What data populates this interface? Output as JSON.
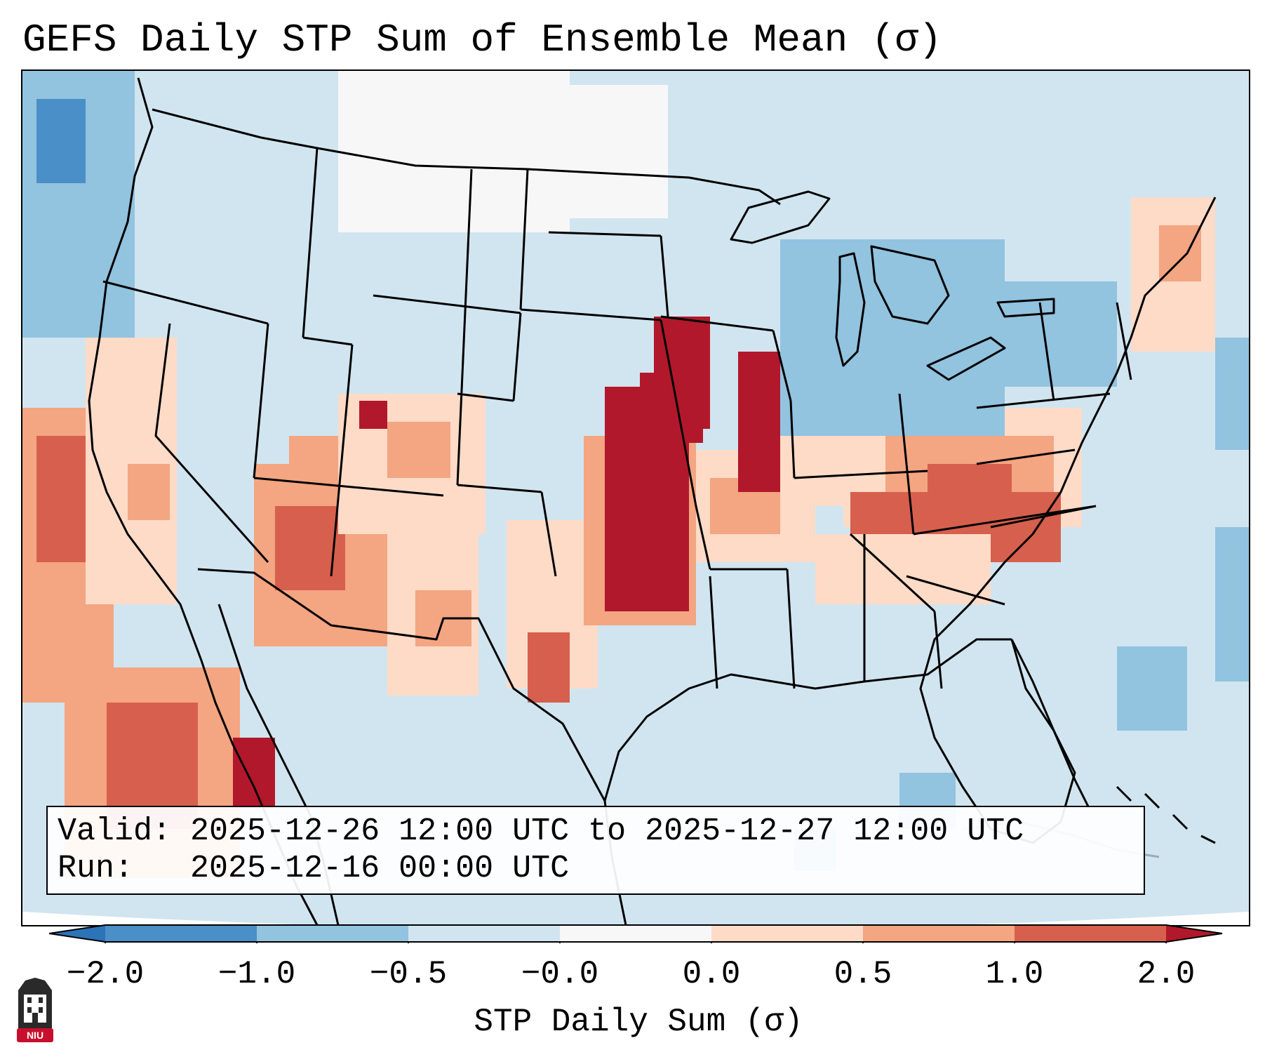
{
  "title": "GEFS Daily STP Sum of Ensemble Mean (σ)",
  "info": {
    "valid_label": "Valid:",
    "valid_value": "2025-12-26 12:00 UTC to 2025-12-27 12:00 UTC",
    "run_label": "Run:",
    "run_value": "2025-12-16 00:00 UTC"
  },
  "colorbar": {
    "label": "STP Daily Sum (σ)",
    "ticks": [
      "−2.0",
      "−1.0",
      "−0.5",
      "−0.0",
      "0.0",
      "0.5",
      "1.0",
      "2.0"
    ],
    "bins": [
      {
        "range": "< -2.0",
        "color": "#2c73b8"
      },
      {
        "range": "-2.0 to -1.0",
        "color": "#4a8fc7"
      },
      {
        "range": "-1.0 to -0.5",
        "color": "#92c3df"
      },
      {
        "range": "-0.5 to -0.0",
        "color": "#d1e5f0"
      },
      {
        "range": "-0.0 to 0.0",
        "color": "#f7f7f7"
      },
      {
        "range": "0.0 to 0.5",
        "color": "#fddbc7"
      },
      {
        "range": "0.5 to 1.0",
        "color": "#f4a582"
      },
      {
        "range": "1.0 to 2.0",
        "color": "#d6604d"
      },
      {
        "range": "> 2.0",
        "color": "#b2182b"
      }
    ]
  },
  "map": {
    "projection": "Lambert Conformal, CONUS",
    "background_color": "#d1e5f0",
    "ocean_color": "#ffffff",
    "boundary_color": "#000000",
    "anomaly_regions": [
      {
        "region": "Eastern Kansas / Oklahoma / Missouri",
        "category": "> 2.0",
        "color": "#b2182b"
      },
      {
        "region": "Iowa / Illinois",
        "category": "> 2.0",
        "color": "#b2182b"
      },
      {
        "region": "Ohio Valley / Kentucky / Tennessee",
        "category": "1.0 to 2.0",
        "color": "#d6604d"
      },
      {
        "region": "Four Corners / Arizona / Utah",
        "category": "1.0 to 2.0",
        "color": "#d6604d"
      },
      {
        "region": "Pacific Coast / Baja California",
        "category": "1.0 to 2.0",
        "color": "#d6604d"
      },
      {
        "region": "Great Lakes",
        "category": "-1.0 to -0.5",
        "color": "#92c3df"
      },
      {
        "region": "Northern Plains",
        "category": "-0.0 to 0.0",
        "color": "#f7f7f7"
      }
    ]
  },
  "logo": {
    "text": "NIU",
    "color": "#c8102e"
  }
}
